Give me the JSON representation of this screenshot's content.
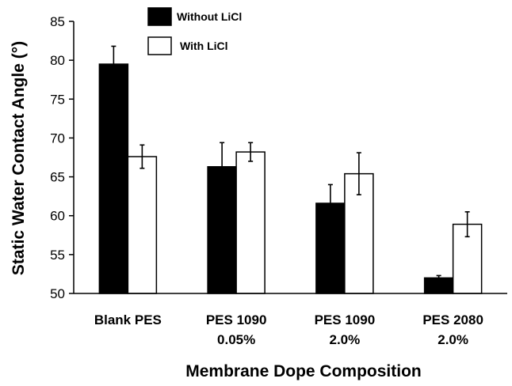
{
  "chart_data": {
    "type": "bar",
    "title": "",
    "xlabel": "Membrane Dope Composition",
    "ylabel": "Static Water Contact Angle (°)",
    "ylim": [
      50,
      85
    ],
    "yticks": [
      50,
      55,
      60,
      65,
      70,
      75,
      80,
      85
    ],
    "grid": false,
    "legend_position": "top-center",
    "categories": [
      [
        "Blank PES"
      ],
      [
        "PES 1090",
        "0.05%"
      ],
      [
        "PES 1090",
        "2.0%"
      ],
      [
        "PES 2080",
        "2.0%"
      ]
    ],
    "series": [
      {
        "name": "Without LiCl",
        "fill": "#000000",
        "values": [
          79.5,
          66.3,
          61.6,
          52.0
        ],
        "errors": [
          2.3,
          3.1,
          2.4,
          0.3
        ]
      },
      {
        "name": "With LiCl",
        "fill": "#ffffff",
        "values": [
          67.6,
          68.2,
          65.4,
          58.9
        ],
        "errors": [
          1.5,
          1.2,
          2.7,
          1.6
        ]
      }
    ]
  }
}
